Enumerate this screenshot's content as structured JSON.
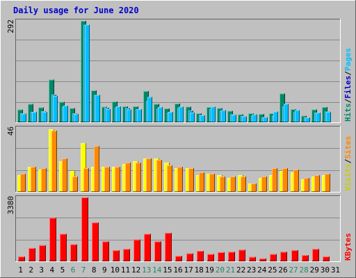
{
  "chart_data": {
    "type": "bar",
    "title": "Daily usage for June 2020",
    "x": [
      "1",
      "2",
      "3",
      "4",
      "5",
      "6",
      "7",
      "8",
      "9",
      "10",
      "11",
      "12",
      "13",
      "14",
      "15",
      "16",
      "17",
      "18",
      "19",
      "20",
      "21",
      "22",
      "23",
      "24",
      "25",
      "26",
      "27",
      "28",
      "29",
      "30",
      "31"
    ],
    "weekend_days": [
      "6",
      "7",
      "13",
      "14",
      "20",
      "21",
      "27",
      "28"
    ],
    "colors": {
      "background": "#c0c0c0",
      "title": "#0000cc",
      "weekend_label": "#228866",
      "hits": "#008866",
      "files": "#0099dd",
      "pages": "#00c0ff",
      "visits": "#ffff00",
      "sites": "#ff8800",
      "kbytes": "#ff0000"
    },
    "panels": [
      {
        "id": "hits-files-pages",
        "ymax_label": "292",
        "ylim": [
          0,
          292
        ],
        "labels": [
          {
            "text": "Hits",
            "color": "#008866"
          },
          {
            "text": "/",
            "color": "#000000"
          },
          {
            "text": "Files",
            "color": "#0000cc"
          },
          {
            "text": "/",
            "color": "#000000"
          },
          {
            "text": "Pages",
            "color": "#00c0ff"
          }
        ],
        "series": [
          {
            "name": "Hits",
            "values": [
              37,
              53,
              43,
              123,
              59,
              41,
              292,
              92,
              45,
              60,
              46,
              46,
              90,
              53,
              40,
              54,
              45,
              26,
              44,
              41,
              33,
              23,
              26,
              24,
              26,
              83,
              38,
              19,
              37,
              44,
              0
            ]
          },
          {
            "name": "Files",
            "values": [
              26,
              30,
              32,
              80,
              45,
              26,
              281,
              79,
              42,
              43,
              41,
              38,
              61,
              39,
              28,
              41,
              34,
              21,
              38,
              33,
              23,
              18,
              19,
              14,
              19,
              45,
              29,
              14,
              28,
              31,
              0
            ]
          },
          {
            "name": "Pages",
            "values": [
              25,
              30,
              30,
              76,
              48,
              24,
              281,
              79,
              38,
              46,
              37,
              38,
              73,
              44,
              30,
              45,
              28,
              20,
              45,
              35,
              22,
              17,
              23,
              15,
              31,
              53,
              35,
              14,
              28,
              30,
              0
            ]
          }
        ]
      },
      {
        "id": "visits-sites",
        "ymax_label": "46",
        "ylim": [
          0,
          46
        ],
        "labels": [
          {
            "text": "Visits",
            "color": "#cccc00"
          },
          {
            "text": "/",
            "color": "#000000"
          },
          {
            "text": "Sites",
            "color": "#ff8800"
          }
        ],
        "series": [
          {
            "name": "Visits",
            "values": [
              12,
              18,
              16,
              45,
              22,
              15,
              35,
              18,
              18,
              18,
              20,
              22,
              24,
              24,
              21,
              17,
              17,
              12,
              13,
              12,
              10,
              12,
              6,
              10,
              12,
              15,
              14,
              9,
              11,
              12,
              0
            ]
          },
          {
            "name": "Sites",
            "values": [
              13,
              18,
              17,
              44,
              24,
              11,
              17,
              33,
              18,
              18,
              21,
              21,
              24,
              23,
              19,
              18,
              17,
              14,
              13,
              11,
              11,
              11,
              6,
              11,
              17,
              17,
              16,
              10,
              12,
              13,
              0
            ]
          }
        ]
      },
      {
        "id": "kbytes",
        "ymax_label": "3380",
        "ylim": [
          0,
          3380
        ],
        "labels": [
          {
            "text": "KBytes",
            "color": "#ff0000"
          }
        ],
        "series": [
          {
            "name": "KBytes",
            "values": [
              250,
              700,
              850,
              2300,
              1450,
              900,
              3380,
              2050,
              1050,
              580,
              650,
              1150,
              1450,
              1050,
              1500,
              280,
              420,
              550,
              380,
              480,
              500,
              610,
              230,
              150,
              380,
              500,
              590,
              330,
              650,
              250,
              0
            ]
          }
        ]
      }
    ]
  }
}
